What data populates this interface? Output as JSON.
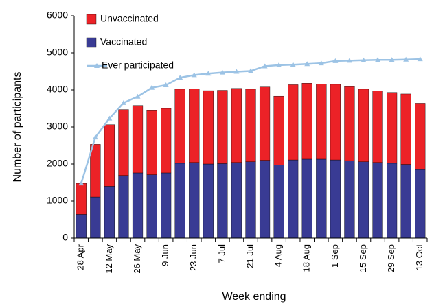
{
  "chart_data": {
    "type": "bar",
    "stacked": true,
    "xlabel": "Week ending",
    "ylabel": "Number of participants",
    "categories": [
      "28 Apr",
      null,
      "12 May",
      null,
      "26 May",
      null,
      "9 Jun",
      null,
      "23 Jun",
      null,
      "7 Jul",
      null,
      "21 Jul",
      null,
      "4 Aug",
      null,
      "18 Aug",
      null,
      "1 Sep",
      null,
      "15 Sep",
      null,
      "29 Sep",
      null,
      "13 Oct"
    ],
    "series": [
      {
        "name": "Unvaccinated",
        "color": "#ec2227",
        "values": [
          840,
          1420,
          1660,
          1780,
          1820,
          1730,
          1740,
          2000,
          1990,
          1980,
          1980,
          2000,
          1960,
          1980,
          1860,
          2030,
          2050,
          2030,
          2040,
          2000,
          1960,
          1930,
          1910,
          1900,
          1790
        ]
      },
      {
        "name": "Vaccinated",
        "color": "#393b94",
        "values": [
          640,
          1110,
          1400,
          1690,
          1760,
          1710,
          1760,
          2020,
          2040,
          2000,
          2010,
          2040,
          2060,
          2100,
          1970,
          2110,
          2130,
          2130,
          2110,
          2090,
          2060,
          2040,
          2020,
          1990,
          1850
        ]
      },
      {
        "name": "Ever participated",
        "color": "#9cc3e5",
        "type": "line",
        "values": [
          1480,
          2720,
          3230,
          3650,
          3820,
          4060,
          4130,
          4330,
          4400,
          4440,
          4470,
          4490,
          4510,
          4640,
          4670,
          4680,
          4700,
          4720,
          4780,
          4790,
          4800,
          4810,
          4810,
          4820,
          4830
        ]
      }
    ],
    "ylim": [
      0,
      6000
    ],
    "yticks": [
      0,
      1000,
      2000,
      3000,
      4000,
      5000,
      6000
    ],
    "grid": false,
    "legend": "upper left"
  }
}
